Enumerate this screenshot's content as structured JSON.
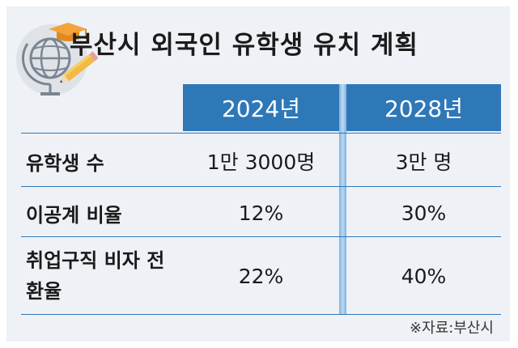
{
  "title": "부산시 외국인 유학생 유치 계획",
  "columns": [
    "2024년",
    "2028년"
  ],
  "rows": [
    {
      "label": "유학생 수",
      "values": [
        "1만 3000명",
        "3만 명"
      ]
    },
    {
      "label": "이공계 비율",
      "values": [
        "12%",
        "30%"
      ]
    },
    {
      "label": "취업구직 비자 전환율",
      "values": [
        "22%",
        "40%"
      ]
    }
  ],
  "source": "※자료:부산시",
  "colors": {
    "header": "#2e78b8",
    "background": "#eef2f6",
    "divider": "#7fb2e0"
  },
  "icons": [
    "globe-with-graduation-cap-and-pencil-icon"
  ]
}
